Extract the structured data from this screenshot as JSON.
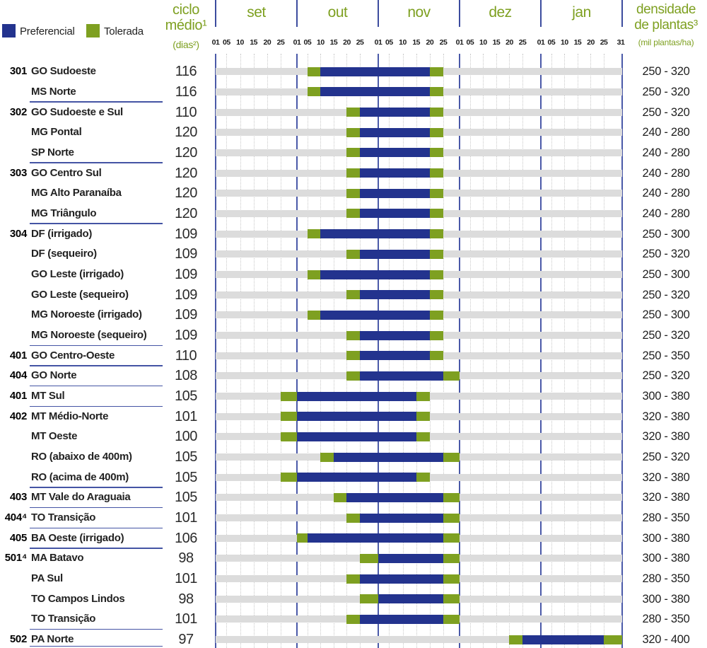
{
  "legend": {
    "preferencial_label": "Preferencial",
    "tolerada_label": "Tolerada"
  },
  "header": {
    "ciclo_line1": "ciclo",
    "ciclo_line2": "médio¹",
    "ciclo_unit": "(dias²)",
    "densidade_line1": "densidade",
    "densidade_line2": "de plantas³",
    "densidade_unit": "(mil plantas/ha)"
  },
  "colors": {
    "preferencial": "#23338e",
    "tolerada": "#7ea021",
    "track": "#dcdcdc",
    "grid_line": "#4a59a8",
    "header_text": "#7ea021"
  },
  "chart_data": {
    "type": "bar",
    "subtype": "gantt-planting-calendar",
    "legend_entries": [
      "Preferencial",
      "Tolerada"
    ],
    "x_axis": {
      "months": [
        "set",
        "out",
        "nov",
        "dez",
        "jan"
      ],
      "ticks_per_month": [
        "01",
        "05",
        "10",
        "15",
        "20",
        "25"
      ],
      "final_tick": "31",
      "start_label": "01/set",
      "end_label": "31/jan",
      "days_total": 153,
      "month_starts": [
        0,
        30,
        61,
        91,
        122
      ]
    },
    "rows": [
      {
        "code": "301",
        "region": "GO Sudoeste",
        "ciclo": "116",
        "densidade": "250 - 320",
        "d": [
          34,
          39,
          80,
          85
        ],
        "window": [
          "05/out",
          "10/out",
          "20/nov",
          "25/nov"
        ],
        "group_end": false
      },
      {
        "code": "",
        "region": "MS Norte",
        "ciclo": "116",
        "densidade": "250 - 320",
        "d": [
          34,
          39,
          80,
          85
        ],
        "window": [
          "05/out",
          "10/out",
          "20/nov",
          "25/nov"
        ],
        "group_end": true
      },
      {
        "code": "302",
        "region": "GO Sudoeste e Sul",
        "ciclo": "110",
        "densidade": "250 - 320",
        "d": [
          49,
          54,
          80,
          85
        ],
        "window": [
          "20/out",
          "25/out",
          "20/nov",
          "25/nov"
        ],
        "group_end": false
      },
      {
        "code": "",
        "region": "MG Pontal",
        "ciclo": "120",
        "densidade": "240 - 280",
        "d": [
          49,
          54,
          80,
          85
        ],
        "window": [
          "20/out",
          "25/out",
          "20/nov",
          "25/nov"
        ],
        "group_end": false
      },
      {
        "code": "",
        "region": "SP Norte",
        "ciclo": "120",
        "densidade": "240 - 280",
        "d": [
          49,
          54,
          80,
          85
        ],
        "window": [
          "20/out",
          "25/out",
          "20/nov",
          "25/nov"
        ],
        "group_end": true
      },
      {
        "code": "303",
        "region": "GO Centro Sul",
        "ciclo": "120",
        "densidade": "240 - 280",
        "d": [
          49,
          54,
          80,
          85
        ],
        "window": [
          "20/out",
          "25/out",
          "20/nov",
          "25/nov"
        ],
        "group_end": false
      },
      {
        "code": "",
        "region": "MG Alto Paranaíba",
        "ciclo": "120",
        "densidade": "240 - 280",
        "d": [
          49,
          54,
          80,
          85
        ],
        "window": [
          "20/out",
          "25/out",
          "20/nov",
          "25/nov"
        ],
        "group_end": false
      },
      {
        "code": "",
        "region": "MG Triângulo",
        "ciclo": "120",
        "densidade": "240 - 280",
        "d": [
          49,
          54,
          80,
          85
        ],
        "window": [
          "20/out",
          "25/out",
          "20/nov",
          "25/nov"
        ],
        "group_end": true
      },
      {
        "code": "304",
        "region": "DF (irrigado)",
        "ciclo": "109",
        "densidade": "250 - 300",
        "d": [
          34,
          39,
          80,
          85
        ],
        "window": [
          "05/out",
          "10/out",
          "20/nov",
          "25/nov"
        ],
        "group_end": false
      },
      {
        "code": "",
        "region": "DF (sequeiro)",
        "ciclo": "109",
        "densidade": "250 - 320",
        "d": [
          49,
          54,
          80,
          85
        ],
        "window": [
          "20/out",
          "25/out",
          "20/nov",
          "25/nov"
        ],
        "group_end": false
      },
      {
        "code": "",
        "region": "GO Leste (irrigado)",
        "ciclo": "109",
        "densidade": "250 - 300",
        "d": [
          34,
          39,
          80,
          85
        ],
        "window": [
          "05/out",
          "10/out",
          "20/nov",
          "25/nov"
        ],
        "group_end": false
      },
      {
        "code": "",
        "region": "GO Leste (sequeiro)",
        "ciclo": "109",
        "densidade": "250 - 320",
        "d": [
          49,
          54,
          80,
          85
        ],
        "window": [
          "20/out",
          "25/out",
          "20/nov",
          "25/nov"
        ],
        "group_end": false
      },
      {
        "code": "",
        "region": "MG Noroeste (irrigado)",
        "ciclo": "109",
        "densidade": "250 - 300",
        "d": [
          34,
          39,
          80,
          85
        ],
        "window": [
          "05/out",
          "10/out",
          "20/nov",
          "25/nov"
        ],
        "group_end": false
      },
      {
        "code": "",
        "region": "MG Noroeste (sequeiro)",
        "ciclo": "109",
        "densidade": "250 - 320",
        "d": [
          49,
          54,
          80,
          85
        ],
        "window": [
          "20/out",
          "25/out",
          "20/nov",
          "25/nov"
        ],
        "group_end": true
      },
      {
        "code": "401",
        "region": "GO Centro-Oeste",
        "ciclo": "110",
        "densidade": "250 - 350",
        "d": [
          49,
          54,
          80,
          85
        ],
        "window": [
          "20/out",
          "25/out",
          "20/nov",
          "25/nov"
        ],
        "group_end": true
      },
      {
        "code": "404",
        "region": "GO Norte",
        "ciclo": "108",
        "densidade": "250 - 320",
        "d": [
          49,
          54,
          85,
          91
        ],
        "window": [
          "20/out",
          "25/out",
          "25/nov",
          "01/dez"
        ],
        "group_end": true
      },
      {
        "code": "401",
        "region": "MT Sul",
        "ciclo": "105",
        "densidade": "300 - 380",
        "d": [
          24,
          30,
          75,
          80
        ],
        "window": [
          "25/set",
          "01/out",
          "15/nov",
          "20/nov"
        ],
        "group_end": true
      },
      {
        "code": "402",
        "region": "MT Médio-Norte",
        "ciclo": "101",
        "densidade": "320 - 380",
        "d": [
          24,
          30,
          75,
          80
        ],
        "window": [
          "25/set",
          "01/out",
          "15/nov",
          "20/nov"
        ],
        "group_end": false
      },
      {
        "code": "",
        "region": "MT Oeste",
        "ciclo": "100",
        "densidade": "320 - 380",
        "d": [
          24,
          30,
          75,
          80
        ],
        "window": [
          "25/set",
          "01/out",
          "15/nov",
          "20/nov"
        ],
        "group_end": false
      },
      {
        "code": "",
        "region": "RO (abaixo de 400m)",
        "ciclo": "105",
        "densidade": "250 - 320",
        "d": [
          39,
          44,
          85,
          91
        ],
        "window": [
          "10/out",
          "15/out",
          "25/nov",
          "01/dez"
        ],
        "group_end": false
      },
      {
        "code": "",
        "region": "RO (acima de 400m)",
        "ciclo": "105",
        "densidade": "320 - 380",
        "d": [
          24,
          30,
          75,
          80
        ],
        "window": [
          "25/set",
          "01/out",
          "15/nov",
          "20/nov"
        ],
        "group_end": true
      },
      {
        "code": "403",
        "region": "MT Vale do Araguaia",
        "ciclo": "105",
        "densidade": "320 - 380",
        "d": [
          44,
          49,
          85,
          91
        ],
        "window": [
          "15/out",
          "20/out",
          "25/nov",
          "01/dez"
        ],
        "group_end": true
      },
      {
        "code": "404⁴",
        "region": "TO Transição",
        "ciclo": "101",
        "densidade": "280 - 350",
        "d": [
          49,
          54,
          85,
          91
        ],
        "window": [
          "20/out",
          "25/out",
          "25/nov",
          "01/dez"
        ],
        "group_end": true
      },
      {
        "code": "405",
        "region": "BA Oeste (irrigado)",
        "ciclo": "106",
        "densidade": "300 - 380",
        "d": [
          30,
          34,
          85,
          91
        ],
        "window": [
          "01/out",
          "05/out",
          "25/nov",
          "01/dez"
        ],
        "group_end": true
      },
      {
        "code": "501⁴",
        "region": "MA Batavo",
        "ciclo": "98",
        "densidade": "300 - 380",
        "d": [
          54,
          61,
          85,
          91
        ],
        "window": [
          "25/out",
          "01/nov",
          "25/nov",
          "01/dez"
        ],
        "group_end": false
      },
      {
        "code": "",
        "region": "PA Sul",
        "ciclo": "101",
        "densidade": "280 - 350",
        "d": [
          49,
          54,
          85,
          91
        ],
        "window": [
          "20/out",
          "25/out",
          "25/nov",
          "01/dez"
        ],
        "group_end": false
      },
      {
        "code": "",
        "region": "TO Campos Lindos",
        "ciclo": "98",
        "densidade": "300 - 380",
        "d": [
          54,
          61,
          85,
          91
        ],
        "window": [
          "25/out",
          "01/nov",
          "25/nov",
          "01/dez"
        ],
        "group_end": false
      },
      {
        "code": "",
        "region": "TO Transição",
        "ciclo": "101",
        "densidade": "280 - 350",
        "d": [
          49,
          54,
          85,
          91
        ],
        "window": [
          "20/out",
          "25/out",
          "25/nov",
          "01/dez"
        ],
        "group_end": true
      },
      {
        "code": "502",
        "region": "PA Norte",
        "ciclo": "97",
        "densidade": "320 - 400",
        "d": [
          110,
          115,
          146,
          153
        ],
        "window": [
          "20/dez",
          "25/dez",
          "25/jan",
          "31/jan"
        ],
        "group_end": true
      }
    ]
  }
}
